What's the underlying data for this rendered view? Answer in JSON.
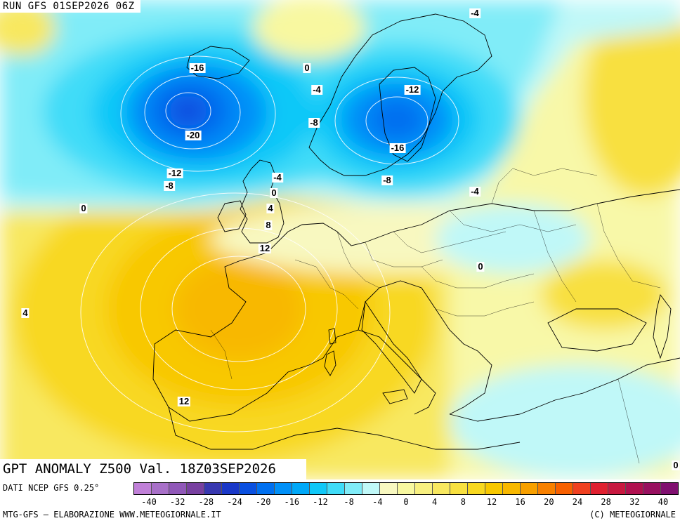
{
  "header": {
    "run_title": "RUN GFS 01SEP2026 06Z",
    "main_title": "GPT ANOMALY Z500 Val. 18Z03SEP2026"
  },
  "footer": {
    "data_source": "DATI NCEP GFS 0.25°",
    "left_text": "MTG-GFS — ELABORAZIONE WWW.METEOGIORNALE.IT",
    "right_text": "(C) METEOGIORNALE"
  },
  "legend": {
    "tick_labels": [
      "-40",
      "-32",
      "-28",
      "-24",
      "-20",
      "-16",
      "-12",
      "-8",
      "-4",
      "0",
      "4",
      "8",
      "12",
      "16",
      "20",
      "24",
      "28",
      "32",
      "40"
    ],
    "colors": [
      "#c080d8",
      "#a870c8",
      "#9058b8",
      "#7840a0",
      "#3838b0",
      "#1a38c8",
      "#0a50e0",
      "#0070f0",
      "#0090f8",
      "#00a8f8",
      "#10c8f8",
      "#40dcf8",
      "#80ecf8",
      "#c0f8f8",
      "#f8f8c0",
      "#f8f8a0",
      "#f8f080",
      "#f8e860",
      "#f8e040",
      "#f8d820",
      "#f8c800",
      "#f8b800",
      "#f8a000",
      "#f88000",
      "#f86000",
      "#f04020",
      "#e02030",
      "#c81840",
      "#b01050",
      "#981060",
      "#801070"
    ]
  },
  "contour_labels": [
    {
      "text": "-4"
    },
    {
      "text": "-16"
    },
    {
      "text": "0"
    },
    {
      "text": "-4"
    },
    {
      "text": "-12"
    },
    {
      "text": "-20"
    },
    {
      "text": "-8"
    },
    {
      "text": "-16"
    },
    {
      "text": "-12"
    },
    {
      "text": "-8"
    },
    {
      "text": "-4"
    },
    {
      "text": "-8"
    },
    {
      "text": "0"
    },
    {
      "text": "-4"
    },
    {
      "text": "0"
    },
    {
      "text": "4"
    },
    {
      "text": "8"
    },
    {
      "text": "12"
    },
    {
      "text": "0"
    },
    {
      "text": "4"
    },
    {
      "text": "12"
    },
    {
      "text": "0"
    }
  ]
}
